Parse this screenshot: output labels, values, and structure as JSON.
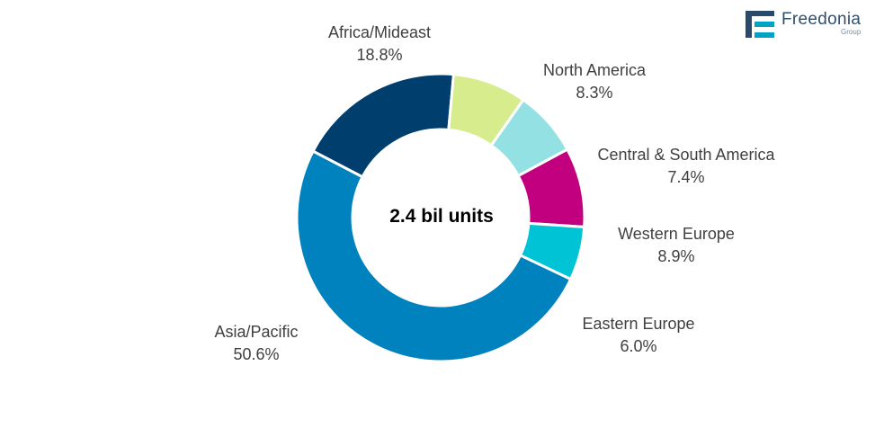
{
  "chart_data": {
    "type": "pie",
    "variant": "donut",
    "center_label": "2.4 bil units",
    "slices": [
      {
        "label": "Africa/Mideast",
        "value": 18.8,
        "value_label": "18.8%",
        "color": "#003e6e"
      },
      {
        "label": "North America",
        "value": 8.3,
        "value_label": "8.3%",
        "color": "#d7ec8d"
      },
      {
        "label": "Central & South America",
        "value": 7.4,
        "value_label": "7.4%",
        "color": "#93e1e2"
      },
      {
        "label": "Western Europe",
        "value": 8.9,
        "value_label": "8.9%",
        "color": "#c2007f"
      },
      {
        "label": "Eastern Europe",
        "value": 6.0,
        "value_label": "6.0%",
        "color": "#00c3d6"
      },
      {
        "label": "Asia/Pacific",
        "value": 50.6,
        "value_label": "50.6%",
        "color": "#0082bf"
      }
    ]
  },
  "logo": {
    "name": "Freedonia",
    "sub": "Group",
    "icon": "freedonia-f-mark"
  }
}
